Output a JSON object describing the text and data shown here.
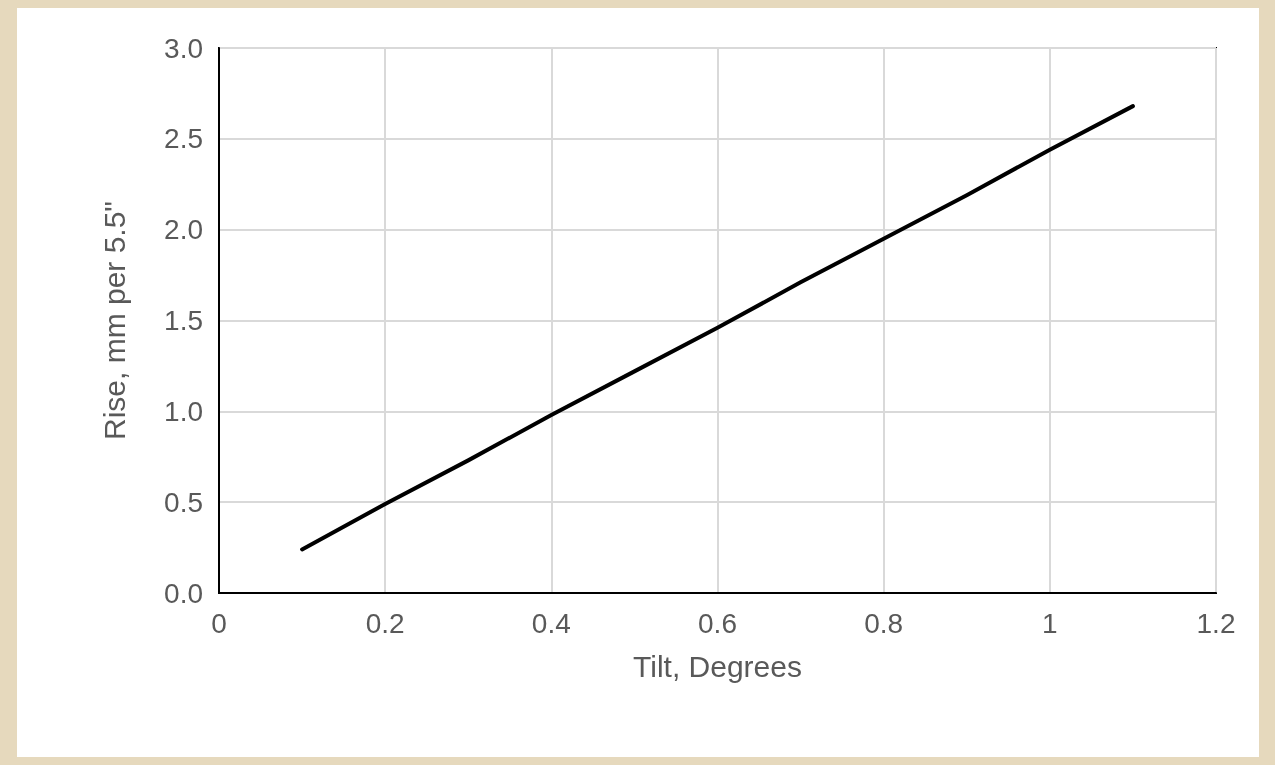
{
  "chart_data": {
    "type": "line",
    "xlabel": "Tilt, Degrees",
    "ylabel": "Rise, mm per 5.5\"",
    "x": [
      0.1,
      0.2,
      0.3,
      0.4,
      0.5,
      0.6,
      0.7,
      0.8,
      0.9,
      1.0,
      1.1
    ],
    "series": [
      {
        "color": "#000000",
        "values": [
          0.24,
          0.49,
          0.73,
          0.98,
          1.22,
          1.46,
          1.71,
          1.95,
          2.19,
          2.44,
          2.68
        ]
      }
    ],
    "xlim": [
      0,
      1.2
    ],
    "xticks": [
      0,
      0.2,
      0.4,
      0.6,
      0.8,
      1,
      1.2
    ],
    "ylim": [
      0,
      3
    ],
    "yticks": [
      {
        "value": 0,
        "label": "0.0"
      },
      0.5,
      {
        "value": 1,
        "label": "1.0"
      },
      1.5,
      {
        "value": 2,
        "label": "2.0"
      },
      2.5,
      {
        "value": 3,
        "label": "3.0"
      }
    ],
    "grid": true,
    "marker": "none",
    "line_style": "solid"
  }
}
